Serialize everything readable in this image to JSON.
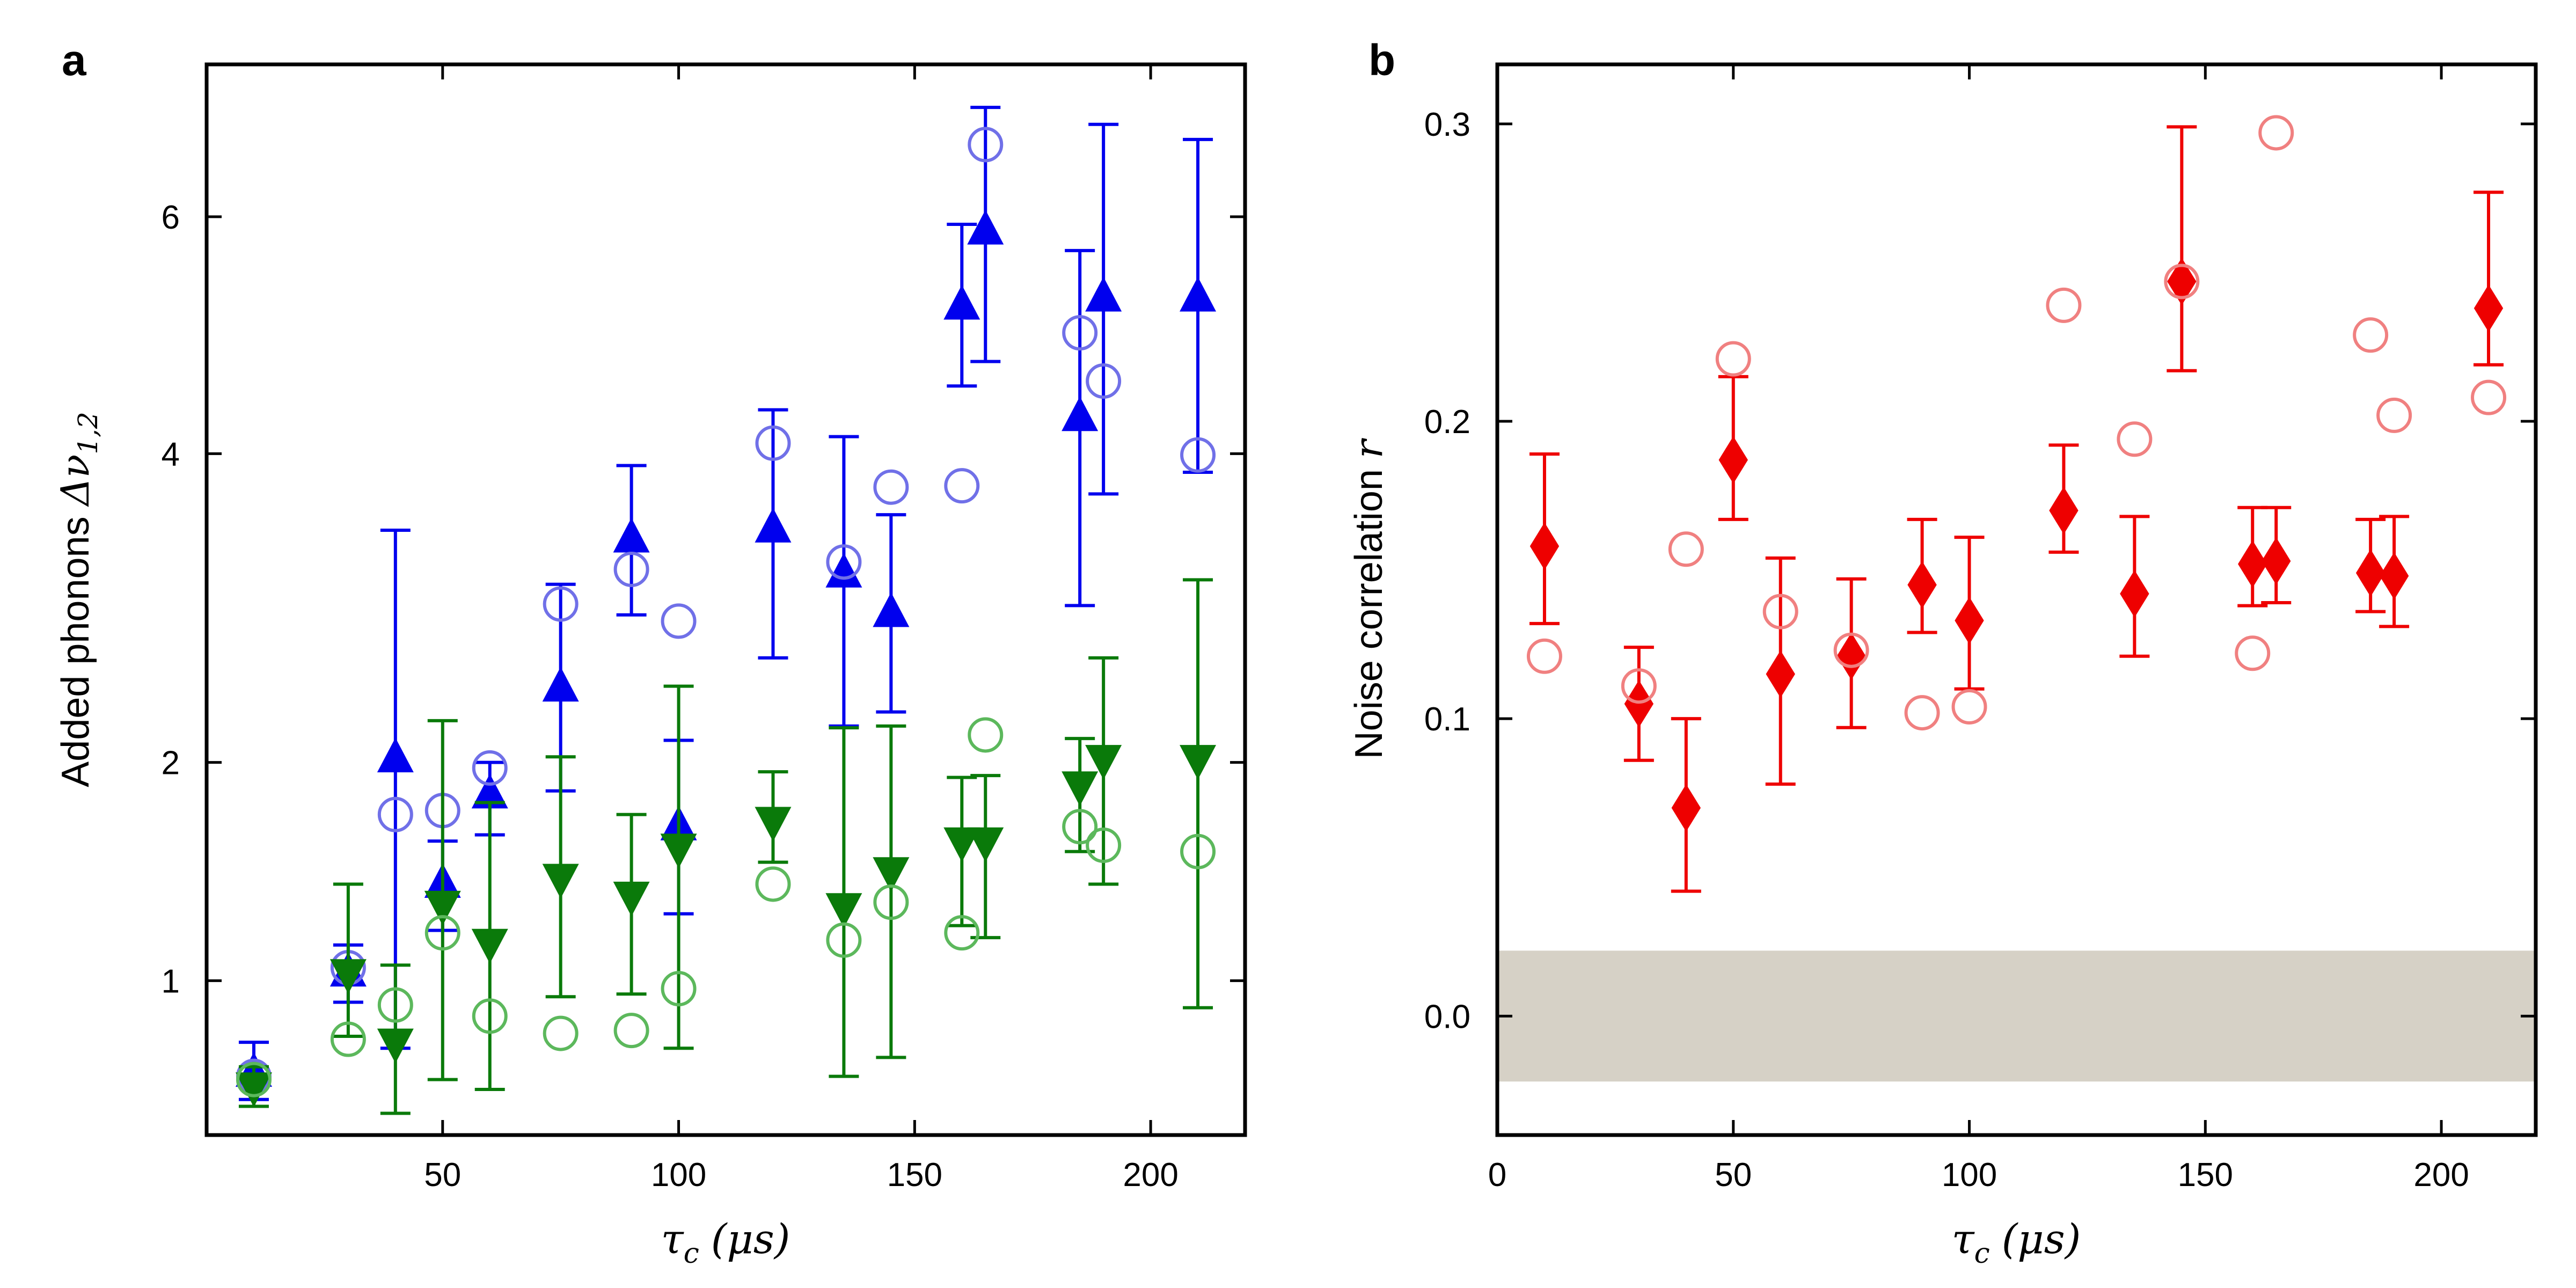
{
  "chart_data": [
    {
      "panel": "a",
      "type": "scatter",
      "xlabel_sym": "τ",
      "xlabel_sub": "c",
      "xlabel_unit": "(μs)",
      "ylabel_text": "Added phonons ",
      "ylabel_sym": "Δν",
      "ylabel_sub": "1,2",
      "xlim": [
        0,
        220
      ],
      "ylim": [
        0.5,
        7.5
      ],
      "yscale": "sqrt",
      "xticks": [
        50,
        100,
        150,
        200
      ],
      "yticks": [
        1,
        2,
        4,
        6
      ],
      "series": [
        {
          "name": "blue-measured",
          "marker": "triangle-up",
          "color": "#0000ee",
          "points": [
            {
              "x": 10,
              "y": 0.68,
              "lo": 0.6,
              "hi": 0.78
            },
            {
              "x": 30,
              "y": 1.03,
              "lo": 0.92,
              "hi": 1.14
            },
            {
              "x": 40,
              "y": 2.02,
              "lo": 0.76,
              "hi": 3.44
            },
            {
              "x": 50,
              "y": 1.4,
              "lo": 1.2,
              "hi": 1.6
            },
            {
              "x": 60,
              "y": 1.83,
              "lo": 1.63,
              "hi": 2.0
            },
            {
              "x": 75,
              "y": 2.42,
              "lo": 1.85,
              "hi": 3.07
            },
            {
              "x": 90,
              "y": 3.38,
              "lo": 2.87,
              "hi": 3.91
            },
            {
              "x": 100,
              "y": 1.67,
              "lo": 1.27,
              "hi": 2.12
            },
            {
              "x": 120,
              "y": 3.45,
              "lo": 2.6,
              "hi": 4.34
            },
            {
              "x": 135,
              "y": 3.14,
              "lo": 2.2,
              "hi": 4.13
            },
            {
              "x": 145,
              "y": 2.88,
              "lo": 2.28,
              "hi": 3.55
            },
            {
              "x": 160,
              "y": 5.2,
              "lo": 4.53,
              "hi": 5.93
            },
            {
              "x": 165,
              "y": 5.87,
              "lo": 4.73,
              "hi": 7.06
            },
            {
              "x": 185,
              "y": 4.28,
              "lo": 2.93,
              "hi": 5.69
            },
            {
              "x": 190,
              "y": 5.27,
              "lo": 3.7,
              "hi": 6.89
            },
            {
              "x": 210,
              "y": 5.27,
              "lo": 3.86,
              "hi": 6.74
            }
          ]
        },
        {
          "name": "blue-predicted",
          "marker": "circle-open",
          "color": "#7070e8",
          "points": [
            {
              "x": 10,
              "y": 0.67
            },
            {
              "x": 30,
              "y": 1.05
            },
            {
              "x": 40,
              "y": 1.73
            },
            {
              "x": 50,
              "y": 1.75
            },
            {
              "x": 60,
              "y": 1.97
            },
            {
              "x": 75,
              "y": 2.94
            },
            {
              "x": 90,
              "y": 3.17
            },
            {
              "x": 100,
              "y": 2.83
            },
            {
              "x": 120,
              "y": 4.08
            },
            {
              "x": 135,
              "y": 3.22
            },
            {
              "x": 145,
              "y": 3.75
            },
            {
              "x": 160,
              "y": 3.76
            },
            {
              "x": 165,
              "y": 6.69
            },
            {
              "x": 185,
              "y": 4.97
            },
            {
              "x": 190,
              "y": 4.57
            },
            {
              "x": 210,
              "y": 3.99
            }
          ]
        },
        {
          "name": "green-measured",
          "marker": "triangle-down",
          "color": "#0a7a0a",
          "points": [
            {
              "x": 10,
              "y": 0.64,
              "lo": 0.58,
              "hi": 0.7
            },
            {
              "x": 30,
              "y": 1.03,
              "lo": 0.8,
              "hi": 1.4
            },
            {
              "x": 40,
              "y": 0.78,
              "lo": 0.56,
              "hi": 1.06
            },
            {
              "x": 50,
              "y": 1.31,
              "lo": 0.66,
              "hi": 2.23
            },
            {
              "x": 60,
              "y": 1.15,
              "lo": 0.63,
              "hi": 1.79
            },
            {
              "x": 75,
              "y": 1.43,
              "lo": 0.94,
              "hi": 2.03
            },
            {
              "x": 90,
              "y": 1.35,
              "lo": 0.95,
              "hi": 1.73
            },
            {
              "x": 100,
              "y": 1.57,
              "lo": 0.76,
              "hi": 2.43
            },
            {
              "x": 120,
              "y": 1.7,
              "lo": 1.5,
              "hi": 1.95
            },
            {
              "x": 135,
              "y": 1.3,
              "lo": 0.67,
              "hi": 2.19
            },
            {
              "x": 145,
              "y": 1.46,
              "lo": 0.73,
              "hi": 2.2
            },
            {
              "x": 160,
              "y": 1.6,
              "lo": 1.22,
              "hi": 1.92
            },
            {
              "x": 165,
              "y": 1.6,
              "lo": 1.17,
              "hi": 1.93
            },
            {
              "x": 185,
              "y": 1.88,
              "lo": 1.55,
              "hi": 2.13
            },
            {
              "x": 190,
              "y": 2.02,
              "lo": 1.4,
              "hi": 2.6
            },
            {
              "x": 210,
              "y": 2.02,
              "lo": 0.9,
              "hi": 3.1
            }
          ]
        },
        {
          "name": "green-predicted",
          "marker": "circle-open",
          "color": "#5cb85c",
          "points": [
            {
              "x": 10,
              "y": 0.66
            },
            {
              "x": 30,
              "y": 0.79
            },
            {
              "x": 40,
              "y": 0.91
            },
            {
              "x": 50,
              "y": 1.19
            },
            {
              "x": 60,
              "y": 0.87
            },
            {
              "x": 75,
              "y": 0.81
            },
            {
              "x": 90,
              "y": 0.82
            },
            {
              "x": 100,
              "y": 0.97
            },
            {
              "x": 120,
              "y": 1.4
            },
            {
              "x": 135,
              "y": 1.16
            },
            {
              "x": 145,
              "y": 1.32
            },
            {
              "x": 160,
              "y": 1.19
            },
            {
              "x": 165,
              "y": 2.15
            },
            {
              "x": 185,
              "y": 1.67
            },
            {
              "x": 190,
              "y": 1.58
            },
            {
              "x": 210,
              "y": 1.55
            }
          ]
        }
      ]
    },
    {
      "panel": "b",
      "type": "scatter",
      "xlabel_sym": "τ",
      "xlabel_sub": "c",
      "xlabel_unit": "(μs)",
      "ylabel_text": "Noise correlation ",
      "ylabel_sym": "r",
      "xlim": [
        0,
        220
      ],
      "ylim": [
        -0.04,
        0.32
      ],
      "xticks": [
        0,
        50,
        100,
        150,
        200
      ],
      "yticks": [
        0.0,
        0.1,
        0.2,
        0.3
      ],
      "ytick_labels": [
        "0.0",
        "0.1",
        "0.2",
        "0.3"
      ],
      "band": {
        "lo": -0.022,
        "hi": 0.022,
        "color": "#d6d1c6"
      },
      "series": [
        {
          "name": "measured-correlation",
          "marker": "diamond",
          "color": "#ee0000",
          "points": [
            {
              "x": 10,
              "y": 0.158,
              "lo": 0.132,
              "hi": 0.189
            },
            {
              "x": 30,
              "y": 0.105,
              "lo": 0.086,
              "hi": 0.124
            },
            {
              "x": 40,
              "y": 0.07,
              "lo": 0.042,
              "hi": 0.1
            },
            {
              "x": 50,
              "y": 0.187,
              "lo": 0.167,
              "hi": 0.215
            },
            {
              "x": 60,
              "y": 0.115,
              "lo": 0.078,
              "hi": 0.154
            },
            {
              "x": 75,
              "y": 0.121,
              "lo": 0.097,
              "hi": 0.147
            },
            {
              "x": 90,
              "y": 0.145,
              "lo": 0.129,
              "hi": 0.167
            },
            {
              "x": 100,
              "y": 0.133,
              "lo": 0.11,
              "hi": 0.161
            },
            {
              "x": 120,
              "y": 0.17,
              "lo": 0.156,
              "hi": 0.192
            },
            {
              "x": 135,
              "y": 0.142,
              "lo": 0.121,
              "hi": 0.168
            },
            {
              "x": 145,
              "y": 0.247,
              "lo": 0.217,
              "hi": 0.299
            },
            {
              "x": 160,
              "y": 0.152,
              "lo": 0.138,
              "hi": 0.171
            },
            {
              "x": 165,
              "y": 0.153,
              "lo": 0.139,
              "hi": 0.171
            },
            {
              "x": 185,
              "y": 0.149,
              "lo": 0.136,
              "hi": 0.167
            },
            {
              "x": 190,
              "y": 0.148,
              "lo": 0.131,
              "hi": 0.168
            },
            {
              "x": 210,
              "y": 0.238,
              "lo": 0.219,
              "hi": 0.277
            }
          ]
        },
        {
          "name": "predicted-correlation",
          "marker": "circle-open",
          "color": "#f08080",
          "points": [
            {
              "x": 10,
              "y": 0.121
            },
            {
              "x": 30,
              "y": 0.111
            },
            {
              "x": 40,
              "y": 0.157
            },
            {
              "x": 50,
              "y": 0.221
            },
            {
              "x": 60,
              "y": 0.136
            },
            {
              "x": 75,
              "y": 0.123
            },
            {
              "x": 90,
              "y": 0.102
            },
            {
              "x": 100,
              "y": 0.104
            },
            {
              "x": 120,
              "y": 0.239
            },
            {
              "x": 135,
              "y": 0.194
            },
            {
              "x": 145,
              "y": 0.247
            },
            {
              "x": 160,
              "y": 0.122
            },
            {
              "x": 165,
              "y": 0.297
            },
            {
              "x": 185,
              "y": 0.229
            },
            {
              "x": 190,
              "y": 0.202
            },
            {
              "x": 210,
              "y": 0.208
            }
          ]
        }
      ]
    }
  ]
}
